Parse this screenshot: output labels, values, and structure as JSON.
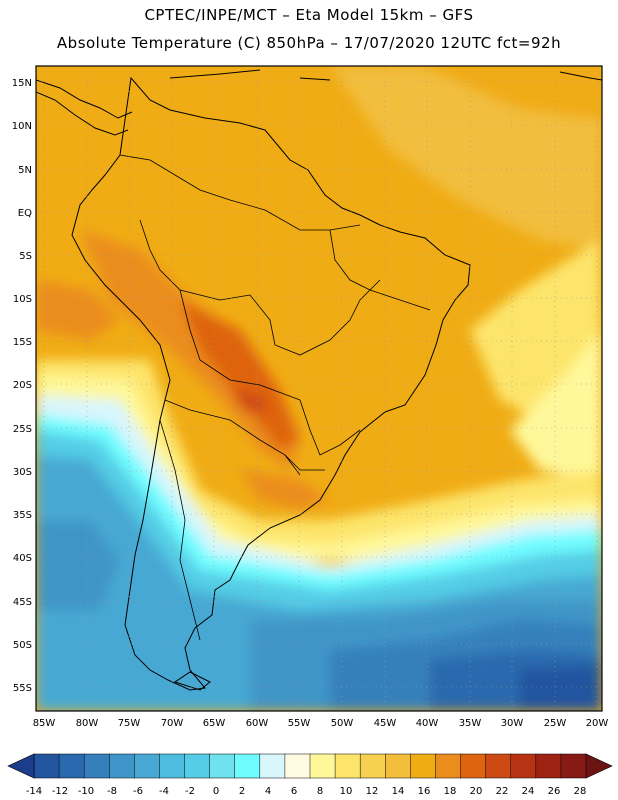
{
  "header": {
    "line1": "CPTEC/INPE/MCT –  Eta Model 15km – GFS",
    "line2": "Absolute Temperature (C) 850hPa – 17/07/2020 12UTC fct=92h"
  },
  "map": {
    "lat_labels": [
      "15N",
      "10N",
      "5N",
      "EQ",
      "5S",
      "10S",
      "15S",
      "20S",
      "25S",
      "30S",
      "35S",
      "40S",
      "45S",
      "50S",
      "55S"
    ],
    "lon_labels": [
      "85W",
      "80W",
      "75W",
      "70W",
      "65W",
      "60W",
      "55W",
      "50W",
      "45W",
      "40W",
      "35W",
      "30W",
      "25W",
      "20W"
    ]
  },
  "colorbar": {
    "labels": [
      "-14",
      "-12",
      "-10",
      "-8",
      "-6",
      "-4",
      "-2",
      "0",
      "2",
      "4",
      "6",
      "8",
      "10",
      "12",
      "14",
      "16",
      "18",
      "20",
      "22",
      "24",
      "26",
      "28"
    ],
    "colors": [
      "#1e3c8c",
      "#23559f",
      "#2a69ad",
      "#3580bc",
      "#3f95c7",
      "#47a9d3",
      "#4fbddf",
      "#55cde6",
      "#6fe2f0",
      "#6ffcff",
      "#d8f6fc",
      "#fffbe2",
      "#fff89a",
      "#fde56c",
      "#f7d050",
      "#f2be3c",
      "#f0ac14",
      "#eb8d1d",
      "#df6410",
      "#cd4a14",
      "#b83314",
      "#9e2214",
      "#871a14",
      "#6c1414"
    ]
  }
}
